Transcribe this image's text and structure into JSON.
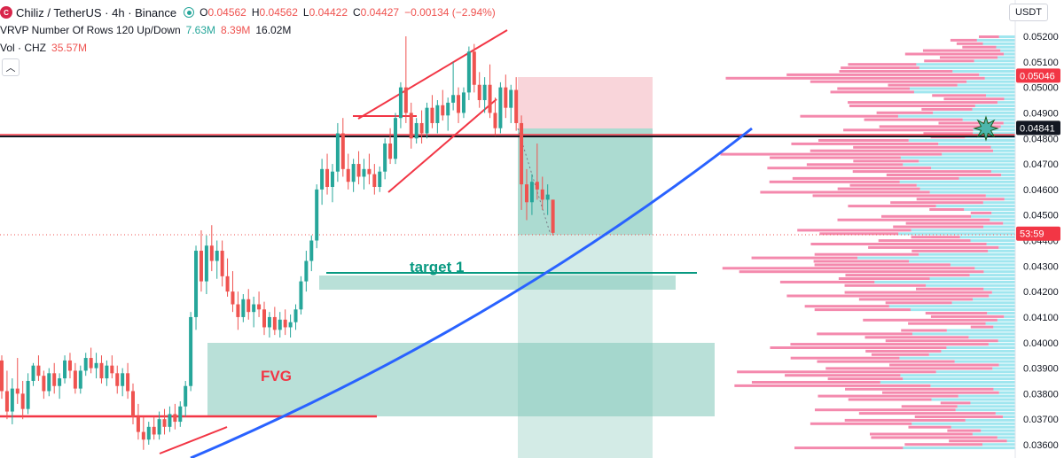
{
  "header": {
    "symbol": "Chiliz / TetherUS · 4h · Binance",
    "logo_text": "C",
    "ohlc": {
      "o_label": "O",
      "o": "0.04562",
      "h_label": "H",
      "h": "0.04562",
      "l_label": "L",
      "l": "0.04422",
      "c_label": "C",
      "c": "0.04427",
      "change": "−0.00134 (−2.94%)"
    },
    "vrvp_label": "VRVP Number Of Rows 120 Up/Down",
    "vrvp_up": "7.63M",
    "vrvp_down": "8.39M",
    "vrvp_total": "16.02M",
    "vol_label": "Vol · CHZ",
    "vol_value": "35.57M",
    "collapse_icon": "chevron-up-icon"
  },
  "currency_button": "USDT",
  "price_axis": {
    "ticks": [
      "0.05200",
      "0.05100",
      "0.05000",
      "0.04900",
      "0.04800",
      "0.04700",
      "0.04600",
      "0.04500",
      "0.04400",
      "0.04300",
      "0.04200",
      "0.04100",
      "0.04000",
      "0.03900",
      "0.03800",
      "0.03700",
      "0.03600"
    ],
    "label_red_top": "0.05046",
    "label_dark": "0.04841",
    "label_current": "0.04427",
    "label_countdown": "53:59"
  },
  "annotations": {
    "target_label": "target 1",
    "fvg_label": "FVG"
  },
  "colors": {
    "up": "#26a69a",
    "down": "#ef5350",
    "trend": "#f23645",
    "curve": "#2962ff",
    "zone": "#80c7b8",
    "stop": "#f7c3cb",
    "vp_up": "#80deea",
    "vp_down": "#f06292"
  },
  "chart_data": {
    "type": "candlestick",
    "timeframe": "4h",
    "y_range": [
      0.0356,
      0.0522
    ],
    "candles_ohlc": [
      [
        0.0393,
        0.0395,
        0.0378,
        0.0381
      ],
      [
        0.0381,
        0.0389,
        0.037,
        0.0373
      ],
      [
        0.0373,
        0.0386,
        0.0368,
        0.0382
      ],
      [
        0.0382,
        0.0394,
        0.0376,
        0.038
      ],
      [
        0.038,
        0.0385,
        0.037,
        0.0374
      ],
      [
        0.0374,
        0.0388,
        0.0372,
        0.0385
      ],
      [
        0.0385,
        0.0392,
        0.0383,
        0.0391
      ],
      [
        0.0391,
        0.0395,
        0.0385,
        0.0387
      ],
      [
        0.0387,
        0.0389,
        0.0378,
        0.0381
      ],
      [
        0.0381,
        0.039,
        0.0379,
        0.0388
      ],
      [
        0.0388,
        0.0392,
        0.038,
        0.0383
      ],
      [
        0.0383,
        0.0388,
        0.0378,
        0.0386
      ],
      [
        0.0386,
        0.0395,
        0.0384,
        0.0393
      ],
      [
        0.0393,
        0.0396,
        0.0386,
        0.0389
      ],
      [
        0.0389,
        0.0392,
        0.038,
        0.0382
      ],
      [
        0.0382,
        0.0391,
        0.038,
        0.0389
      ],
      [
        0.0389,
        0.0396,
        0.0387,
        0.0394
      ],
      [
        0.0394,
        0.0398,
        0.0388,
        0.039
      ],
      [
        0.039,
        0.0396,
        0.0386,
        0.0392
      ],
      [
        0.0392,
        0.0395,
        0.0384,
        0.0386
      ],
      [
        0.0386,
        0.0393,
        0.0383,
        0.0391
      ],
      [
        0.0391,
        0.0395,
        0.0386,
        0.0388
      ],
      [
        0.0388,
        0.0391,
        0.038,
        0.0383
      ],
      [
        0.0383,
        0.039,
        0.0379,
        0.0388
      ],
      [
        0.0388,
        0.0392,
        0.0378,
        0.0381
      ],
      [
        0.0381,
        0.0384,
        0.0368,
        0.0371
      ],
      [
        0.0371,
        0.0376,
        0.0362,
        0.0365
      ],
      [
        0.0365,
        0.0371,
        0.0358,
        0.0362
      ],
      [
        0.0362,
        0.0369,
        0.036,
        0.0367
      ],
      [
        0.0367,
        0.0371,
        0.0362,
        0.0364
      ],
      [
        0.0364,
        0.0373,
        0.0362,
        0.037
      ],
      [
        0.037,
        0.0374,
        0.0364,
        0.0367
      ],
      [
        0.0367,
        0.0375,
        0.0365,
        0.0372
      ],
      [
        0.0372,
        0.0376,
        0.0366,
        0.0369
      ],
      [
        0.0369,
        0.0377,
        0.0367,
        0.0375
      ],
      [
        0.0375,
        0.0385,
        0.0371,
        0.0383
      ],
      [
        0.0383,
        0.0412,
        0.0381,
        0.041
      ],
      [
        0.041,
        0.0438,
        0.0405,
        0.0436
      ],
      [
        0.0436,
        0.0444,
        0.042,
        0.0424
      ],
      [
        0.0424,
        0.0442,
        0.0419,
        0.0438
      ],
      [
        0.0438,
        0.0446,
        0.0428,
        0.0432
      ],
      [
        0.0432,
        0.044,
        0.0425,
        0.0436
      ],
      [
        0.0436,
        0.044,
        0.0422,
        0.0426
      ],
      [
        0.0426,
        0.0433,
        0.0418,
        0.042
      ],
      [
        0.042,
        0.0428,
        0.0412,
        0.0415
      ],
      [
        0.0415,
        0.042,
        0.0405,
        0.041
      ],
      [
        0.041,
        0.0419,
        0.0408,
        0.0417
      ],
      [
        0.0417,
        0.0421,
        0.0409,
        0.0412
      ],
      [
        0.0412,
        0.0418,
        0.0406,
        0.0415
      ],
      [
        0.0415,
        0.042,
        0.041,
        0.0413
      ],
      [
        0.0413,
        0.0416,
        0.0403,
        0.0406
      ],
      [
        0.0406,
        0.0412,
        0.0402,
        0.041
      ],
      [
        0.041,
        0.0414,
        0.0403,
        0.0405
      ],
      [
        0.0405,
        0.0412,
        0.0402,
        0.0409
      ],
      [
        0.0409,
        0.0413,
        0.0403,
        0.0406
      ],
      [
        0.0406,
        0.0411,
        0.0402,
        0.0408
      ],
      [
        0.0408,
        0.0415,
        0.0405,
        0.0413
      ],
      [
        0.0413,
        0.0426,
        0.0411,
        0.0424
      ],
      [
        0.0424,
        0.0436,
        0.042,
        0.0432
      ],
      [
        0.0432,
        0.0442,
        0.0428,
        0.044
      ],
      [
        0.044,
        0.0462,
        0.0437,
        0.046
      ],
      [
        0.046,
        0.0472,
        0.0454,
        0.0468
      ],
      [
        0.0468,
        0.0474,
        0.0458,
        0.0461
      ],
      [
        0.0461,
        0.047,
        0.0455,
        0.0467
      ],
      [
        0.0467,
        0.0486,
        0.0463,
        0.0482
      ],
      [
        0.0482,
        0.0488,
        0.0465,
        0.0468
      ],
      [
        0.0468,
        0.0474,
        0.046,
        0.0463
      ],
      [
        0.0463,
        0.0472,
        0.0459,
        0.047
      ],
      [
        0.047,
        0.0475,
        0.0462,
        0.0465
      ],
      [
        0.0465,
        0.0472,
        0.046,
        0.0468
      ],
      [
        0.0468,
        0.0474,
        0.0462,
        0.0466
      ],
      [
        0.0466,
        0.047,
        0.0458,
        0.0461
      ],
      [
        0.0461,
        0.0469,
        0.0459,
        0.0467
      ],
      [
        0.0467,
        0.048,
        0.0464,
        0.0478
      ],
      [
        0.0478,
        0.0484,
        0.047,
        0.0472
      ],
      [
        0.0472,
        0.049,
        0.047,
        0.0488
      ],
      [
        0.0488,
        0.0502,
        0.0484,
        0.05
      ],
      [
        0.05,
        0.052,
        0.0486,
        0.049
      ],
      [
        0.049,
        0.0494,
        0.0476,
        0.048
      ],
      [
        0.048,
        0.0488,
        0.0478,
        0.0486
      ],
      [
        0.0486,
        0.0491,
        0.0478,
        0.0482
      ],
      [
        0.0482,
        0.0494,
        0.048,
        0.0492
      ],
      [
        0.0492,
        0.0497,
        0.0484,
        0.0486
      ],
      [
        0.0486,
        0.0495,
        0.0482,
        0.0493
      ],
      [
        0.0493,
        0.0499,
        0.0487,
        0.0489
      ],
      [
        0.0489,
        0.0496,
        0.0483,
        0.0494
      ],
      [
        0.0494,
        0.051,
        0.0491,
        0.0497
      ],
      [
        0.0497,
        0.05,
        0.0486,
        0.049
      ],
      [
        0.049,
        0.05,
        0.0488,
        0.0498
      ],
      [
        0.0498,
        0.0516,
        0.0495,
        0.0514
      ],
      [
        0.0514,
        0.0517,
        0.0498,
        0.0501
      ],
      [
        0.0501,
        0.0506,
        0.0492,
        0.0495
      ],
      [
        0.0495,
        0.0504,
        0.049,
        0.0501
      ],
      [
        0.0501,
        0.0509,
        0.0488,
        0.049
      ],
      [
        0.049,
        0.0496,
        0.0481,
        0.0484
      ],
      [
        0.0484,
        0.0502,
        0.0482,
        0.05
      ],
      [
        0.05,
        0.0505,
        0.0488,
        0.0492
      ],
      [
        0.0492,
        0.0501,
        0.0486,
        0.0499
      ],
      [
        0.0499,
        0.0504,
        0.0483,
        0.0486
      ],
      [
        0.0486,
        0.0489,
        0.0452,
        0.0462
      ],
      [
        0.0462,
        0.0468,
        0.0448,
        0.0455
      ],
      [
        0.0455,
        0.0466,
        0.045,
        0.0463
      ],
      [
        0.0463,
        0.0478,
        0.0456,
        0.046
      ],
      [
        0.046,
        0.0465,
        0.0452,
        0.0456
      ],
      [
        0.0456,
        0.0462,
        0.045,
        0.0458
      ],
      [
        0.0456,
        0.0456,
        0.0442,
        0.0443
      ]
    ],
    "levels": {
      "entry": 0.04841,
      "stop_top": 0.05046,
      "current": 0.04427
    }
  }
}
